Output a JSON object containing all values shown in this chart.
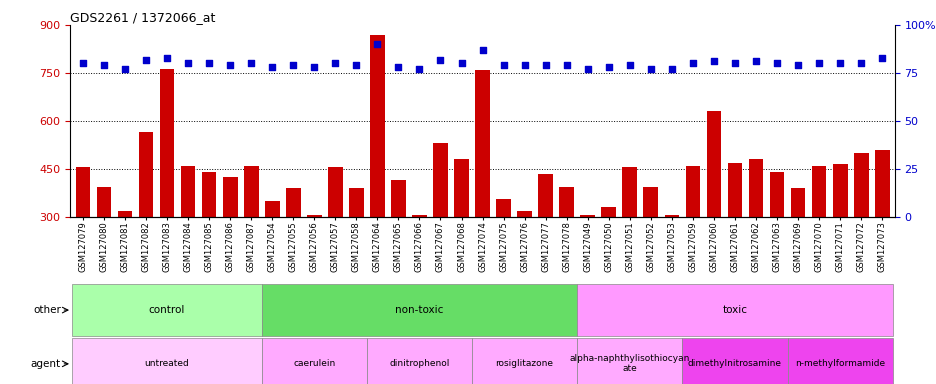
{
  "title": "GDS2261 / 1372066_at",
  "gsm_labels": [
    "GSM127079",
    "GSM127080",
    "GSM127081",
    "GSM127082",
    "GSM127083",
    "GSM127084",
    "GSM127085",
    "GSM127086",
    "GSM127087",
    "GSM127054",
    "GSM127055",
    "GSM127056",
    "GSM127057",
    "GSM127058",
    "GSM127064",
    "GSM127065",
    "GSM127066",
    "GSM127067",
    "GSM127068",
    "GSM127074",
    "GSM127075",
    "GSM127076",
    "GSM127077",
    "GSM127078",
    "GSM127049",
    "GSM127050",
    "GSM127051",
    "GSM127052",
    "GSM127053",
    "GSM127059",
    "GSM127060",
    "GSM127061",
    "GSM127062",
    "GSM127063",
    "GSM127069",
    "GSM127070",
    "GSM127071",
    "GSM127072",
    "GSM127073"
  ],
  "bar_values": [
    457,
    393,
    318,
    567,
    762,
    460,
    440,
    425,
    460,
    350,
    390,
    307,
    455,
    390,
    870,
    415,
    307,
    530,
    480,
    760,
    355,
    320,
    435,
    395,
    307,
    330,
    455,
    395,
    307,
    460,
    630,
    470,
    480,
    440,
    390,
    460,
    465,
    500,
    510
  ],
  "dot_values": [
    80,
    79,
    77,
    82,
    83,
    80,
    80,
    79,
    80,
    78,
    79,
    78,
    80,
    79,
    90,
    78,
    77,
    82,
    80,
    87,
    79,
    79,
    79,
    79,
    77,
    78,
    79,
    77,
    77,
    80,
    81,
    80,
    81,
    80,
    79,
    80,
    80,
    80,
    83
  ],
  "ylim_left": [
    300,
    900
  ],
  "ylim_right": [
    0,
    100
  ],
  "yticks_left": [
    300,
    450,
    600,
    750,
    900
  ],
  "yticks_right": [
    0,
    25,
    50,
    75,
    100
  ],
  "bar_color": "#cc0000",
  "dot_color": "#0000cc",
  "groups_other": [
    {
      "label": "control",
      "start": 0,
      "end": 9,
      "color": "#aaffaa"
    },
    {
      "label": "non-toxic",
      "start": 9,
      "end": 24,
      "color": "#66dd66"
    },
    {
      "label": "toxic",
      "start": 24,
      "end": 39,
      "color": "#ff99ff"
    }
  ],
  "groups_agent": [
    {
      "label": "untreated",
      "start": 0,
      "end": 9,
      "color": "#ffccff"
    },
    {
      "label": "caerulein",
      "start": 9,
      "end": 14,
      "color": "#ffaaff"
    },
    {
      "label": "dinitrophenol",
      "start": 14,
      "end": 19,
      "color": "#ffaaff"
    },
    {
      "label": "rosiglitazone",
      "start": 19,
      "end": 24,
      "color": "#ffaaff"
    },
    {
      "label": "alpha-naphthylisothiocyan\nate",
      "start": 24,
      "end": 29,
      "color": "#ffaaff"
    },
    {
      "label": "dimethylnitrosamine",
      "start": 29,
      "end": 34,
      "color": "#ee44ee"
    },
    {
      "label": "n-methylformamide",
      "start": 34,
      "end": 39,
      "color": "#ee44ee"
    }
  ],
  "bg_color": "#ffffff",
  "tick_color_left": "#cc0000",
  "tick_color_right": "#0000cc"
}
